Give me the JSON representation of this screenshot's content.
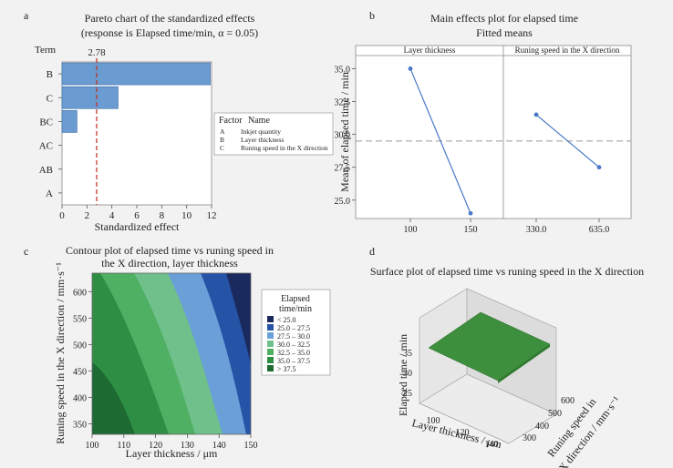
{
  "chart_data": [
    {
      "panel": "a",
      "type": "bar",
      "orientation": "horizontal",
      "title_line1": "Pareto chart of the standardized effects",
      "title_line2": "(response is Elapsed time/min, α = 0.05)",
      "term_label": "Term",
      "xlabel": "Standardized effect",
      "categories": [
        "B",
        "C",
        "BC",
        "AC",
        "AB",
        "A"
      ],
      "values": [
        11.9,
        4.5,
        1.2,
        0,
        0,
        0
      ],
      "xlim": [
        0,
        12
      ],
      "xticks": [
        "0",
        "2",
        "4",
        "6",
        "8",
        "10",
        "12"
      ],
      "reference_value": 2.78,
      "reference_label": "2.78",
      "legend": {
        "header_factor": "Factor",
        "header_name": "Name",
        "rows": [
          {
            "factor": "A",
            "name": "Inkjet quantity"
          },
          {
            "factor": "B",
            "name": "Layer thickness"
          },
          {
            "factor": "C",
            "name": "Runing speed in the X direction"
          }
        ]
      },
      "bar_color": "#6a9bd1",
      "ref_color": "#c0392b"
    },
    {
      "panel": "b",
      "type": "line",
      "title_line1": "Main effects plot for elapsed time",
      "title_line2": "Fitted means",
      "ylabel": "Mean of elapsed time / min",
      "ylim": [
        23.6,
        36.0
      ],
      "yticks": [
        "35.0",
        "32.5",
        "30.0",
        "27.5",
        "25.0"
      ],
      "ytick_values": [
        35.0,
        32.5,
        30.0,
        27.5,
        25.0
      ],
      "mean_line": 29.5,
      "facets": [
        {
          "header": "Layer thickness",
          "x": [
            "100",
            "150"
          ],
          "y": [
            35.0,
            24.0
          ]
        },
        {
          "header": "Runing speed in the X direction",
          "x": [
            "330.0",
            "635.0"
          ],
          "y": [
            31.5,
            27.5
          ]
        }
      ],
      "line_color": "#4a78c8"
    },
    {
      "panel": "c",
      "type": "contour",
      "title_line1": "Contour plot of elapsed time vs runing speed in",
      "title_line2": "the X direction, layer thickness",
      "xlabel": "Layer thickness / μm",
      "ylabel": "Runing speed in the X direction / mm·s⁻¹",
      "xlim": [
        100,
        150
      ],
      "ylim": [
        330,
        635
      ],
      "xticks": [
        "100",
        "110",
        "120",
        "130",
        "140",
        "150"
      ],
      "xtick_values": [
        100,
        110,
        120,
        130,
        140,
        150
      ],
      "yticks": [
        "600",
        "550",
        "500",
        "450",
        "400",
        "350"
      ],
      "ytick_values": [
        600,
        550,
        500,
        450,
        400,
        350
      ],
      "legend_title_line1": "Elapsed",
      "legend_title_line2": "time/min",
      "levels": [
        {
          "label": "<  25.0",
          "color": "#1b2a5e"
        },
        {
          "label": "25.0 – 27.5",
          "color": "#2553a6"
        },
        {
          "label": "27.5 – 30.0",
          "color": "#6b9fd8"
        },
        {
          "label": "30.0 – 32.5",
          "color": "#6fc08a"
        },
        {
          "label": "32.5 – 35.0",
          "color": "#4faf62"
        },
        {
          "label": "35.0 – 37.5",
          "color": "#2e8f44"
        },
        {
          "label": ">  37.5",
          "color": "#1d6b33"
        }
      ]
    },
    {
      "panel": "d",
      "type": "surface",
      "title": "Surface plot of elapsed time vs runing speed in the X direction",
      "zlabel": "Elapsed time / min",
      "xlabel": "Layer thickness / μm",
      "ylabel_line1": "Runing speed in",
      "ylabel_line2": "the X direction / mm·s⁻¹",
      "zticks": [
        "35",
        "30",
        "25"
      ],
      "xticks": [
        "100",
        "120",
        "140"
      ],
      "yticks": [
        "600",
        "500",
        "400",
        "300"
      ],
      "surface_color": "#3d8f3d"
    }
  ],
  "panel_labels": [
    "a",
    "b",
    "c",
    "d"
  ]
}
